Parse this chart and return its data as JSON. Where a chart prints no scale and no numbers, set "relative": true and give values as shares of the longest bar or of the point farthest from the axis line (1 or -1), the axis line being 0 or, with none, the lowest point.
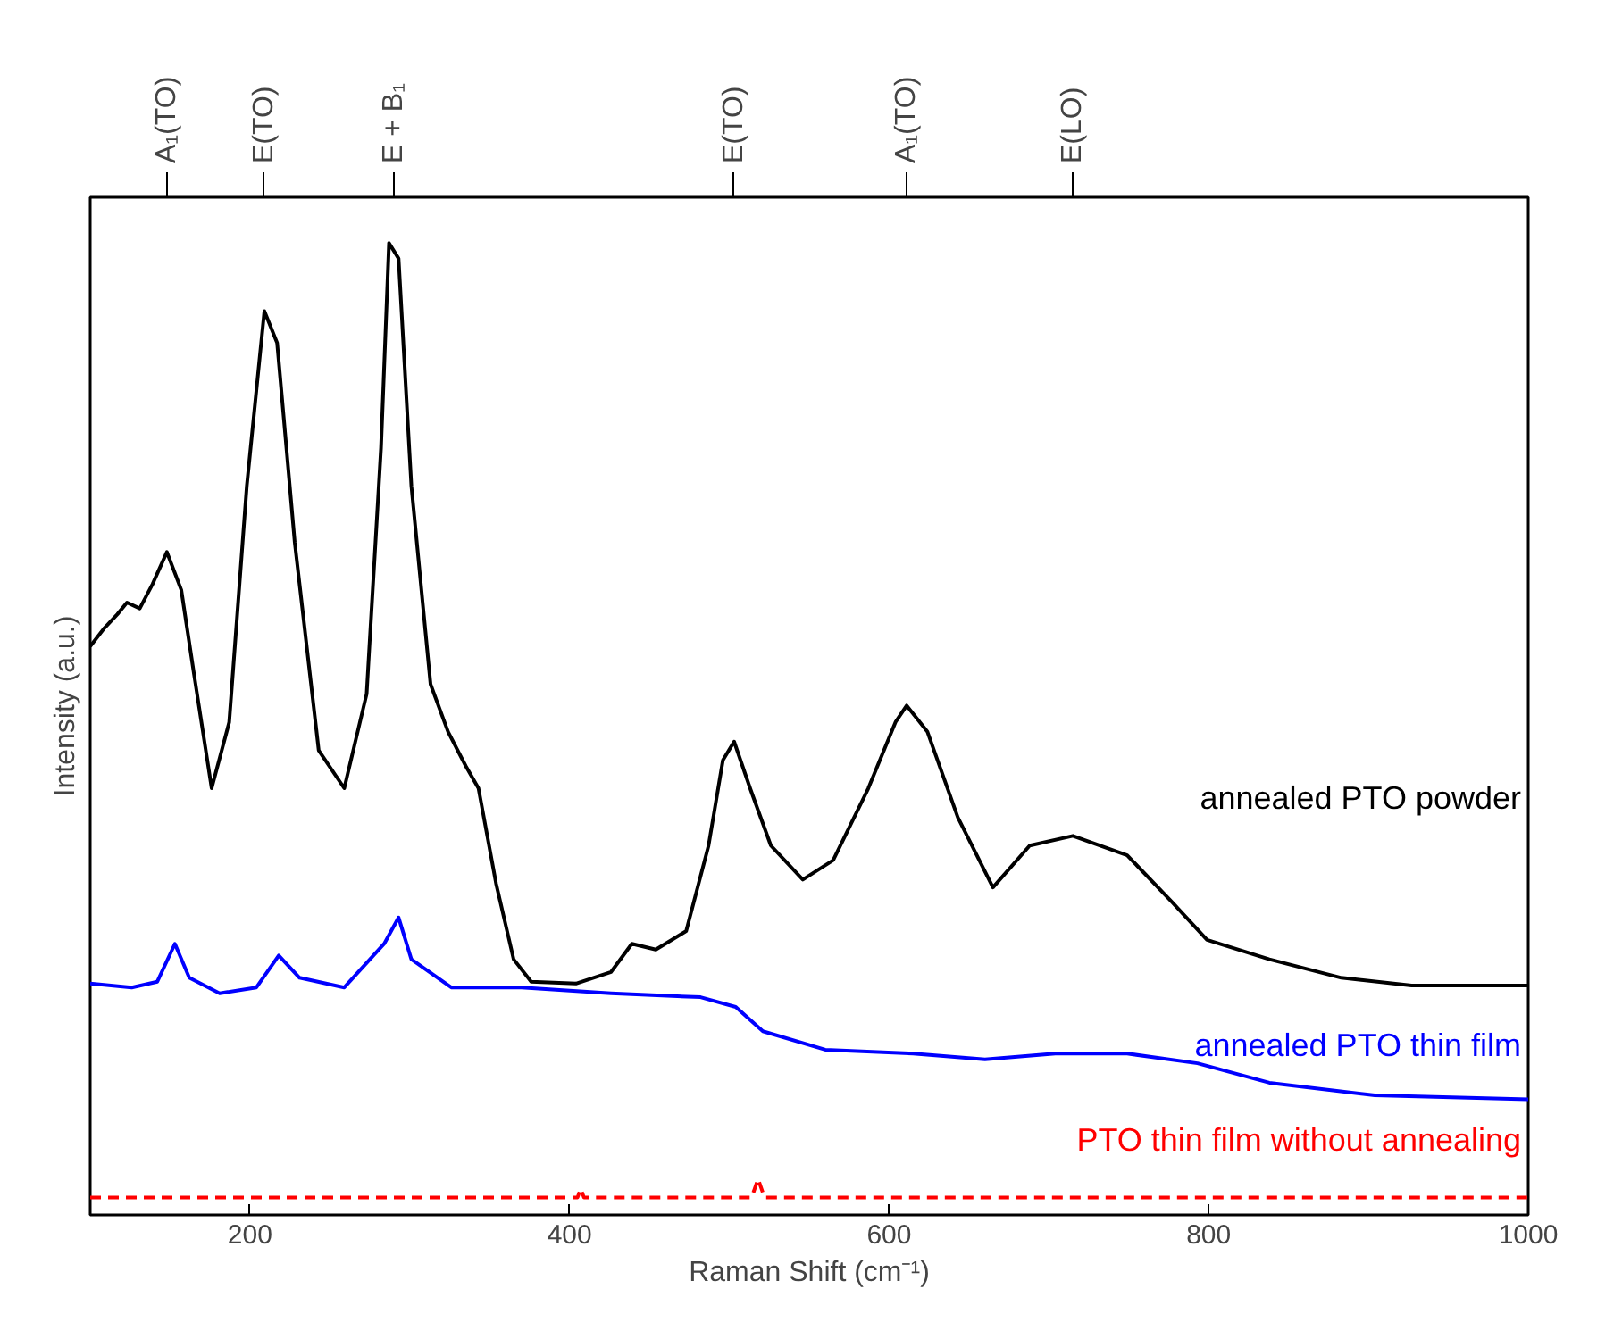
{
  "chart_data": {
    "type": "line",
    "relative": true,
    "xlabel": "Raman Shift (cm⁻¹)",
    "ylabel": "Intensity (a.u.)",
    "xlim": [
      100,
      1000
    ],
    "xticks": [
      200,
      400,
      600,
      800,
      1000
    ],
    "ref_lines": [
      {
        "axis": "x",
        "value": 148,
        "label": "A₁(TO)"
      },
      {
        "axis": "x",
        "value": 209,
        "label": "E(TO)"
      },
      {
        "axis": "x",
        "value": 290,
        "label": "E + B₁"
      },
      {
        "axis": "x",
        "value": 503,
        "label": "E(TO)"
      },
      {
        "axis": "x",
        "value": 611,
        "label": "A₁(TO)"
      },
      {
        "axis": "x",
        "value": 715,
        "label": "E(LO)"
      }
    ],
    "grid": false,
    "tick_labels": "x",
    "line_style": "solid",
    "marker": "none",
    "series": [
      {
        "name": "annealed PTO powder",
        "color": "#000000",
        "x": [
          100,
          109,
          117,
          123,
          131,
          139,
          148,
          157,
          165,
          176,
          187,
          198,
          209,
          217,
          228,
          243,
          259,
          273,
          282,
          287,
          293,
          301,
          313,
          324,
          335,
          343,
          354,
          365,
          376,
          404,
          426,
          439,
          454,
          473,
          487,
          496,
          503,
          513,
          526,
          546,
          565,
          587,
          604,
          611,
          624,
          643,
          665,
          688,
          715,
          749,
          777,
          799,
          838,
          883,
          927,
          1000
        ],
        "values": [
          0.585,
          0.604,
          0.618,
          0.63,
          0.624,
          0.649,
          0.682,
          0.643,
          0.556,
          0.439,
          0.507,
          0.75,
          0.93,
          0.897,
          0.692,
          0.478,
          0.439,
          0.536,
          0.789,
          1.0,
          0.984,
          0.75,
          0.546,
          0.497,
          0.462,
          0.439,
          0.341,
          0.263,
          0.24,
          0.238,
          0.25,
          0.279,
          0.273,
          0.292,
          0.38,
          0.468,
          0.487,
          0.439,
          0.38,
          0.345,
          0.365,
          0.439,
          0.507,
          0.524,
          0.497,
          0.409,
          0.337,
          0.38,
          0.39,
          0.37,
          0.322,
          0.283,
          0.263,
          0.244,
          0.236,
          0.236
        ]
      },
      {
        "name": "annealed PTO thin film",
        "color": "#0000ff",
        "x": [
          100,
          126,
          142,
          153,
          162,
          181,
          204,
          218,
          231,
          259,
          284,
          293,
          301,
          326,
          370,
          426,
          482,
          504,
          521,
          560,
          615,
          660,
          704,
          749,
          793,
          838,
          904,
          1000
        ],
        "values": [
          0.238,
          0.234,
          0.24,
          0.279,
          0.244,
          0.228,
          0.234,
          0.267,
          0.244,
          0.234,
          0.279,
          0.306,
          0.263,
          0.234,
          0.234,
          0.228,
          0.224,
          0.214,
          0.189,
          0.17,
          0.166,
          0.16,
          0.166,
          0.166,
          0.156,
          0.136,
          0.123,
          0.119
        ]
      },
      {
        "name": "PTO thin film without annealing",
        "color": "#ff0000",
        "line_style": "dashed",
        "x": [
          100,
          405,
          407,
          409,
          514,
          518,
          522,
          1000
        ],
        "values": [
          0.018,
          0.018,
          0.027,
          0.018,
          0.018,
          0.037,
          0.018,
          0.018
        ]
      }
    ]
  }
}
